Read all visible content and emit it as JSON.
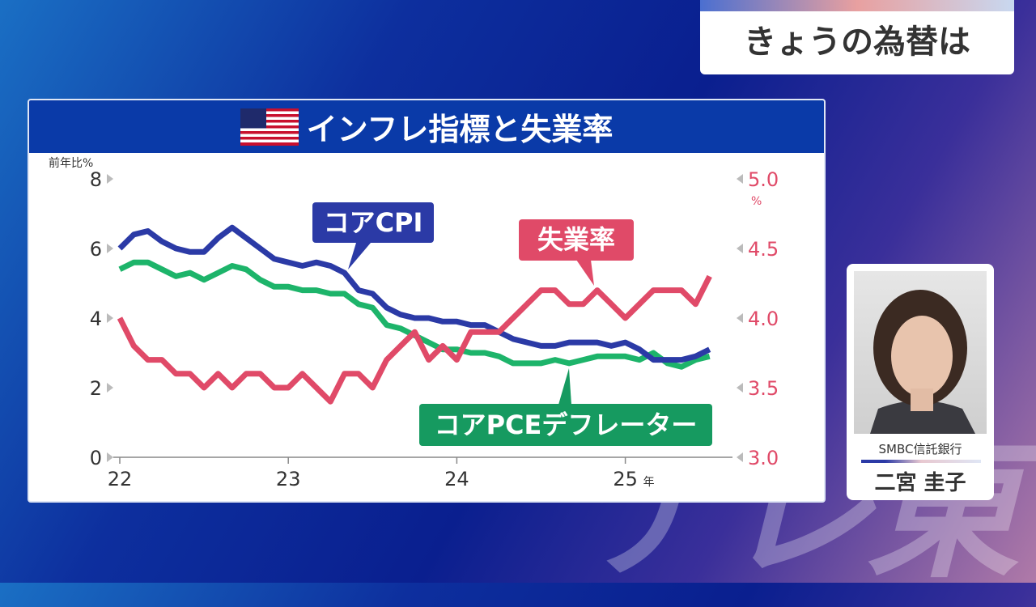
{
  "corner_title": "きょうの為替は",
  "watermark": "テレ東",
  "chart_title": "インフレ指標と失業率",
  "commentator": {
    "org": "SMBC信託銀行",
    "name": "二宮 圭子"
  },
  "colors": {
    "cpi": "#2b3aa6",
    "pce": "#1db46a",
    "unemp": "#e04a68",
    "header": "#0a3aa8"
  },
  "chart_data": {
    "type": "line",
    "title": "インフレ指標と失業率",
    "ylabel": "前年比%",
    "y2label": "%",
    "ylim": [
      0,
      8
    ],
    "y2lim": [
      3.0,
      5.0
    ],
    "yticks": [
      "0",
      "2",
      "4",
      "6",
      "8"
    ],
    "y2ticks": [
      "3.0",
      "3.5",
      "4.0",
      "4.5",
      "5.0"
    ],
    "xticks": [
      "22",
      "23",
      "24",
      "25"
    ],
    "xtick_suffix": "年",
    "x_start": "2022-01",
    "x_end": "2025-07",
    "frequency": "monthly",
    "series": [
      {
        "name": "コアCPI",
        "axis": "left",
        "values": [
          6.0,
          6.4,
          6.5,
          6.2,
          6.0,
          5.9,
          5.9,
          6.3,
          6.6,
          6.3,
          6.0,
          5.7,
          5.6,
          5.5,
          5.6,
          5.5,
          5.3,
          4.8,
          4.7,
          4.3,
          4.1,
          4.0,
          4.0,
          3.9,
          3.9,
          3.8,
          3.8,
          3.6,
          3.4,
          3.3,
          3.2,
          3.2,
          3.3,
          3.3,
          3.3,
          3.2,
          3.3,
          3.1,
          2.8,
          2.8,
          2.8,
          2.9,
          3.1
        ]
      },
      {
        "name": "コアPCEデフレーター",
        "axis": "left",
        "values": [
          5.4,
          5.6,
          5.6,
          5.4,
          5.2,
          5.3,
          5.1,
          5.3,
          5.5,
          5.4,
          5.1,
          4.9,
          4.9,
          4.8,
          4.8,
          4.7,
          4.7,
          4.4,
          4.3,
          3.8,
          3.7,
          3.5,
          3.3,
          3.1,
          3.1,
          3.0,
          3.0,
          2.9,
          2.7,
          2.7,
          2.7,
          2.8,
          2.7,
          2.8,
          2.9,
          2.9,
          2.9,
          2.8,
          3.0,
          2.7,
          2.6,
          2.8,
          2.9
        ]
      },
      {
        "name": "失業率",
        "axis": "right",
        "values": [
          4.0,
          3.8,
          3.7,
          3.7,
          3.6,
          3.6,
          3.5,
          3.6,
          3.5,
          3.6,
          3.6,
          3.5,
          3.5,
          3.6,
          3.5,
          3.4,
          3.6,
          3.6,
          3.5,
          3.7,
          3.8,
          3.9,
          3.7,
          3.8,
          3.7,
          3.9,
          3.9,
          3.9,
          4.0,
          4.1,
          4.2,
          4.2,
          4.1,
          4.1,
          4.2,
          4.1,
          4.0,
          4.1,
          4.2,
          4.2,
          4.2,
          4.1,
          4.3
        ]
      }
    ]
  }
}
